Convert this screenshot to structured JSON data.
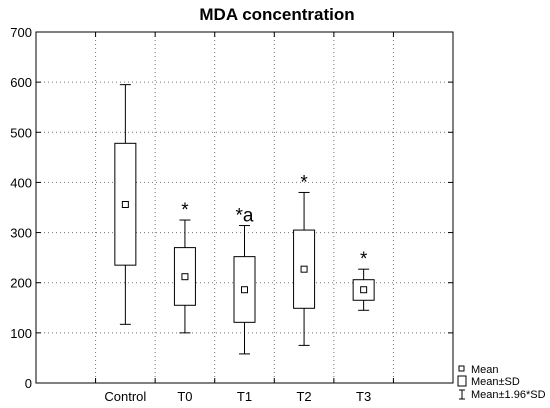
{
  "chart_data": {
    "type": "box",
    "title": "MDA concentration",
    "xlabel": "",
    "ylabel": "",
    "ylim": [
      0,
      700
    ],
    "yticks": [
      0,
      100,
      200,
      300,
      400,
      500,
      600,
      700
    ],
    "categories": [
      "Control",
      "T0",
      "T1",
      "T2",
      "T3"
    ],
    "groups": [
      {
        "label": "Control",
        "mean": 356,
        "sd_low": 235,
        "sd_high": 478,
        "ci_low": 117,
        "ci_high": 595,
        "annotation": ""
      },
      {
        "label": "T0",
        "mean": 212,
        "sd_low": 155,
        "sd_high": 270,
        "ci_low": 100,
        "ci_high": 325,
        "annotation": "*"
      },
      {
        "label": "T1",
        "mean": 186,
        "sd_low": 121,
        "sd_high": 252,
        "ci_low": 58,
        "ci_high": 314,
        "annotation": "*a"
      },
      {
        "label": "T2",
        "mean": 227,
        "sd_low": 149,
        "sd_high": 305,
        "ci_low": 75,
        "ci_high": 380,
        "annotation": "*"
      },
      {
        "label": "T3",
        "mean": 186,
        "sd_low": 165,
        "sd_high": 206,
        "ci_low": 145,
        "ci_high": 227,
        "annotation": "*"
      }
    ],
    "legend": {
      "position": "bottom-right",
      "items": [
        {
          "symbol": "small-square",
          "label": "Mean"
        },
        {
          "symbol": "box",
          "label": "Mean±SD"
        },
        {
          "symbol": "whisker",
          "label": "Mean±1.96*SD"
        }
      ]
    },
    "grid": true,
    "grid_style": "dotted"
  }
}
